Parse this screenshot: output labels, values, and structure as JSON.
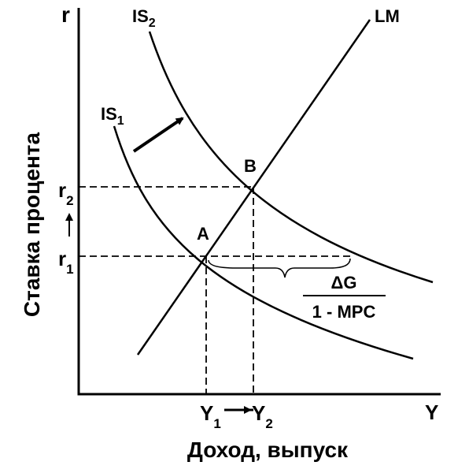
{
  "axes": {
    "y_label": "r",
    "x_label": "Y",
    "y_title": "Ставка процента",
    "x_title": "Доход, выпуск"
  },
  "curves": [
    {
      "label": "IS",
      "sub": "2"
    },
    {
      "label": "IS",
      "sub": "1"
    },
    {
      "label": "LM"
    }
  ],
  "points": [
    {
      "label": "A"
    },
    {
      "label": "B"
    }
  ],
  "levels": {
    "r2": {
      "label": "r",
      "sub": "2"
    },
    "r1": {
      "label": "r",
      "sub": "1"
    },
    "y1": {
      "label": "Y",
      "sub": "1"
    },
    "y2": {
      "label": "Y",
      "sub": "2"
    }
  },
  "multiplier": {
    "numerator": "ΔG",
    "denominator": "1 - MPC"
  }
}
